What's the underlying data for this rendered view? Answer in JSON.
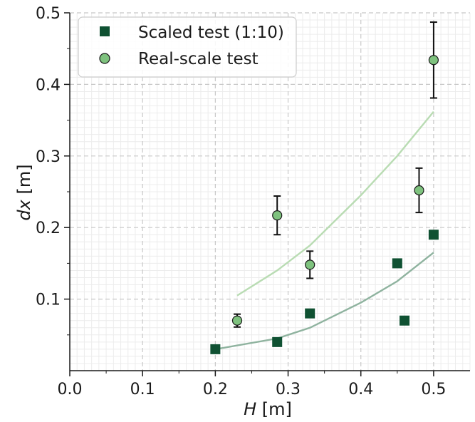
{
  "chart_data": {
    "type": "scatter",
    "xlabel": {
      "italic": "H",
      "rest": " [m]"
    },
    "ylabel": {
      "italic": "dx",
      "rest": " [m]"
    },
    "xlim": [
      0.0,
      0.55
    ],
    "ylim": [
      0.0,
      0.5
    ],
    "xticks": [
      0.0,
      0.1,
      0.2,
      0.3,
      0.4,
      0.5
    ],
    "yticks": [
      0.1,
      0.2,
      0.3,
      0.4,
      0.5
    ],
    "xtick_labels": [
      "0.0",
      "0.1",
      "0.2",
      "0.3",
      "0.4",
      "0.5"
    ],
    "ytick_labels": [
      "0.1",
      "0.2",
      "0.3",
      "0.4",
      "0.5"
    ],
    "grid": true,
    "legend_position": "top-left",
    "series": [
      {
        "name": "Scaled test (1:10)",
        "marker": "square",
        "color": "#0f5132",
        "points": [
          {
            "x": 0.2,
            "y": 0.03
          },
          {
            "x": 0.285,
            "y": 0.04
          },
          {
            "x": 0.33,
            "y": 0.08
          },
          {
            "x": 0.45,
            "y": 0.15
          },
          {
            "x": 0.46,
            "y": 0.07
          },
          {
            "x": 0.5,
            "y": 0.19
          }
        ]
      },
      {
        "name": "Real-scale test",
        "marker": "circle",
        "color": "#7ec27e",
        "points": [
          {
            "x": 0.23,
            "y": 0.07,
            "err": 0.009
          },
          {
            "x": 0.285,
            "y": 0.217,
            "err": 0.027
          },
          {
            "x": 0.33,
            "y": 0.148,
            "err": 0.019
          },
          {
            "x": 0.48,
            "y": 0.252,
            "err": 0.031
          },
          {
            "x": 0.5,
            "y": 0.434,
            "err": 0.053
          }
        ]
      }
    ],
    "fit_lines": [
      {
        "color": "#8fb39f",
        "points": [
          [
            0.2,
            0.03
          ],
          [
            0.285,
            0.045
          ],
          [
            0.33,
            0.06
          ],
          [
            0.4,
            0.095
          ],
          [
            0.45,
            0.125
          ],
          [
            0.5,
            0.165
          ]
        ]
      },
      {
        "color": "#b9dcb3",
        "points": [
          [
            0.23,
            0.105
          ],
          [
            0.285,
            0.14
          ],
          [
            0.33,
            0.175
          ],
          [
            0.4,
            0.245
          ],
          [
            0.45,
            0.3
          ],
          [
            0.5,
            0.362
          ]
        ]
      }
    ]
  }
}
